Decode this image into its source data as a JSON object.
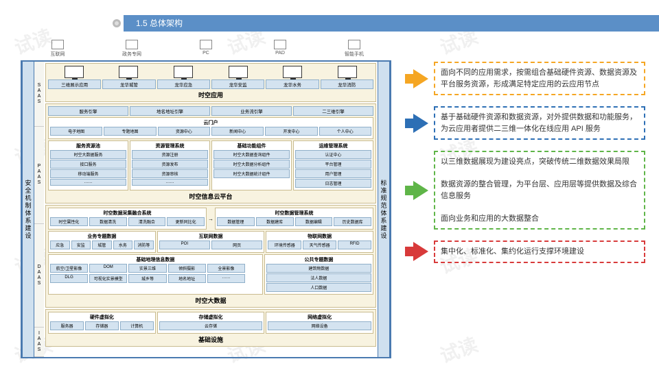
{
  "header": {
    "section": "1.5",
    "title": "总体架构"
  },
  "devices": [
    "互联网",
    "政务专网",
    "PC",
    "PAD",
    "智能手机"
  ],
  "left_pillar": "安全机制体系建设",
  "right_pillar": "标准规范体系建设",
  "layer_labels": [
    "SAAS",
    "PAAS",
    "DAAS",
    "IAAS"
  ],
  "saas": {
    "title": "时空应用",
    "apps": [
      "三维展示应用",
      "龙华城管",
      "龙华应急",
      "龙华安监",
      "龙华水务",
      "龙华消防"
    ]
  },
  "paas": {
    "title": "时空信息云平台",
    "top_row": [
      "服务引擎",
      "地名地址引擎",
      "业务流引擎",
      "二三维引擎"
    ],
    "portal": {
      "title": "云门户",
      "items": [
        "电子地图",
        "专题地图",
        "资源中心",
        "新闻中心",
        "开发中心",
        "个人中心"
      ]
    },
    "groups": [
      {
        "title": "服务资源池",
        "items": [
          "时空大数据服务",
          "接口服务",
          "移动端服务",
          "……"
        ]
      },
      {
        "title": "资源管理系统",
        "items": [
          "资源注册",
          "资源发布",
          "资源审核",
          "……"
        ]
      },
      {
        "title": "基础功能组件",
        "items": [
          "时空大数据查询组件",
          "时空大数据分析组件",
          "时空大数据统计组件"
        ]
      },
      {
        "title": "运维管理系统",
        "items": [
          "认证中心",
          "平台管理",
          "用户管理",
          "日志管理"
        ]
      }
    ]
  },
  "daas": {
    "title": "时空大数据",
    "collect": {
      "title": "时空数据采集融合系统",
      "items": [
        "时空属性化",
        "数据清洗",
        "清洗融合",
        "更新同比化"
      ]
    },
    "manage": {
      "title": "时空数据管理系统",
      "items": [
        "数据管理",
        "数据建库",
        "数据编辑",
        "历史数据库"
      ]
    },
    "domain_groups": [
      {
        "title": "业务专题数据",
        "items": [
          "应急",
          "安监",
          "城管",
          "水务",
          "消防等"
        ]
      },
      {
        "title": "互联网数据",
        "items": [
          "POI",
          "网页"
        ]
      },
      {
        "title": "物联网数据",
        "items": [
          "环境传感器",
          "天气传感器",
          "RFID"
        ]
      }
    ],
    "base_geo": {
      "title": "基础地理信息数据",
      "items": [
        "航空/卫星影像",
        "DOM",
        "实景三维",
        "倾斜摄影",
        "全景影像",
        "DLG",
        "可视化实景模型",
        "城乡等",
        "地名地址",
        "……"
      ]
    },
    "public": {
      "title": "公共专题数据",
      "items": [
        "建筑物数据",
        "法人数据",
        "人口数据"
      ]
    }
  },
  "iaas": {
    "title": "基础设施",
    "groups": [
      {
        "title": "硬件虚拟化",
        "items": [
          "服务器",
          "存储器",
          "计算机"
        ]
      },
      {
        "title": "存储虚拟化",
        "items": [
          "云存储"
        ]
      },
      {
        "title": "网络虚拟化",
        "items": [
          "网络设备"
        ]
      }
    ]
  },
  "callouts": [
    {
      "color": "#f5a623",
      "border": "#f5a623",
      "text": "面向不同的应用需求，按需组合基础硬件资源、数据资源及平台服务资源，形成满足特定应用的云应用节点"
    },
    {
      "color": "#2d6fb5",
      "border": "#2d6fb5",
      "text": "基于基础硬件资源和数据资源，对外提供数据和功能服务，为云应用者提供二三维一体化在线应用 API 服务"
    },
    {
      "color": "#5fb548",
      "border": "#5fb548",
      "text": "以三维数据展现为建设亮点，突破传统二维数据效果局限\n\n数据资源的整合管理，为平台层、应用层等提供数据及综合信息服务\n\n面向业务和应用的大数据整合"
    },
    {
      "color": "#d83a3a",
      "border": "#d83a3a",
      "text": "集中化、标准化、集约化运行支撑环境建设"
    }
  ],
  "style": {
    "header_bg": "#5b8fc7",
    "layer_bg": "#f8f3e0",
    "chip_bg": "#d4e3f0",
    "pillar_bg": "#cfe0ef",
    "border": "#4a7ab0"
  }
}
